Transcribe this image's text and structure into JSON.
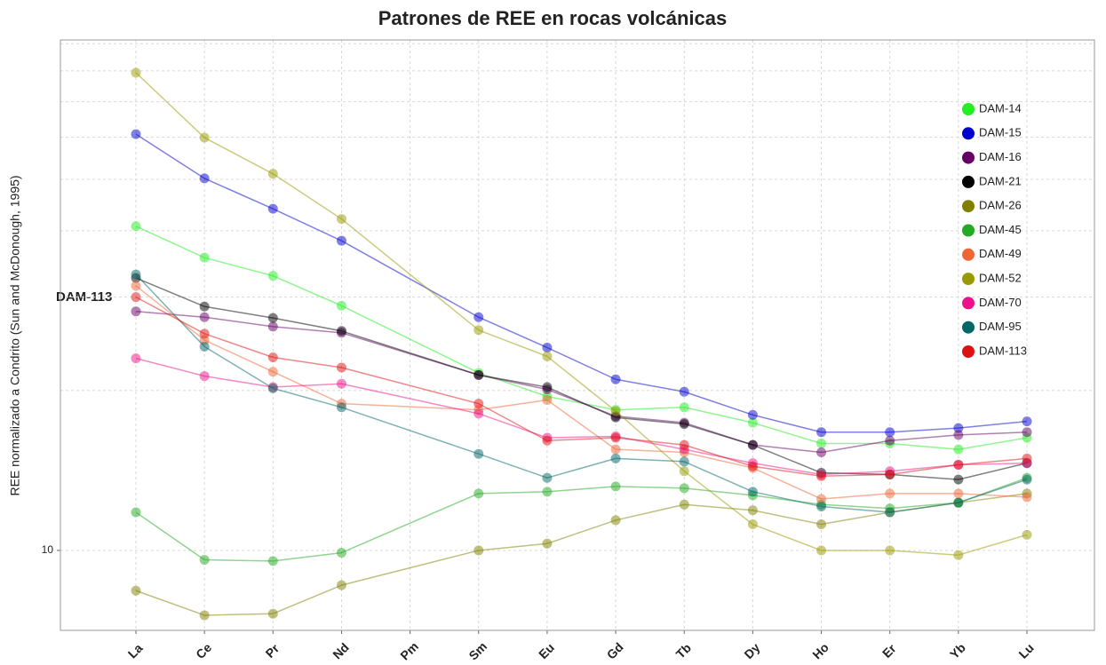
{
  "chart_data": {
    "type": "line",
    "title": "Patrones de REE en rocas volcánicas",
    "y_label": "REE normalizado a Condrito (Sun and McDonough, 1995)",
    "annotation": "DAM-113",
    "categories": [
      "La",
      "Ce",
      "Pr",
      "Nd",
      "Pm",
      "Sm",
      "Eu",
      "Gd",
      "Tb",
      "Dy",
      "Ho",
      "Er",
      "Yb",
      "Lu"
    ],
    "ylim": [
      7.07,
      91.5
    ],
    "yticks": [
      10
    ],
    "ylog": true,
    "grid": true,
    "legend": "right",
    "series": [
      {
        "name": "DAM-14",
        "color": "#22ee22",
        "values": [
          40.8,
          35.6,
          32.9,
          28.9,
          null,
          21.6,
          19.5,
          18.4,
          18.6,
          17.4,
          15.9,
          15.9,
          15.5,
          16.3
        ]
      },
      {
        "name": "DAM-15",
        "color": "#0000cc",
        "values": [
          60.8,
          50.2,
          44.0,
          38.3,
          null,
          27.5,
          24.1,
          21.0,
          19.9,
          18.0,
          16.7,
          16.7,
          17.0,
          17.5
        ]
      },
      {
        "name": "DAM-16",
        "color": "#660066",
        "values": [
          28.2,
          27.5,
          26.4,
          25.7,
          null,
          21.4,
          20.1,
          17.9,
          17.4,
          15.8,
          15.3,
          16.1,
          16.5,
          16.7
        ]
      },
      {
        "name": "DAM-21",
        "color": "#000000",
        "values": [
          32.6,
          28.8,
          27.4,
          25.9,
          null,
          21.4,
          20.3,
          17.8,
          17.3,
          15.8,
          14.0,
          13.9,
          13.6,
          14.6
        ]
      },
      {
        "name": "DAM-26",
        "color": "#808000",
        "values": [
          8.4,
          7.55,
          7.6,
          8.6,
          null,
          10.0,
          10.3,
          11.4,
          12.2,
          11.9,
          11.2,
          11.8,
          12.3,
          12.8
        ]
      },
      {
        "name": "DAM-45",
        "color": "#22aa22",
        "values": [
          11.8,
          9.6,
          9.55,
          9.9,
          null,
          12.8,
          12.9,
          13.2,
          13.1,
          12.7,
          12.2,
          12.0,
          12.3,
          13.7
        ]
      },
      {
        "name": "DAM-49",
        "color": "#ee6633",
        "values": [
          31.5,
          24.9,
          21.7,
          18.9,
          null,
          18.4,
          19.2,
          15.5,
          15.3,
          14.3,
          12.5,
          12.8,
          12.8,
          12.6
        ]
      },
      {
        "name": "DAM-52",
        "color": "#999900",
        "values": [
          79.4,
          59.9,
          51.2,
          42.1,
          null,
          26.0,
          23.2,
          18.3,
          14.1,
          11.2,
          10.0,
          10.0,
          9.8,
          10.7
        ]
      },
      {
        "name": "DAM-70",
        "color": "#ee1188",
        "values": [
          23.0,
          21.3,
          20.3,
          20.6,
          null,
          18.1,
          16.3,
          16.4,
          15.5,
          14.6,
          13.9,
          14.1,
          14.5,
          14.6
        ]
      },
      {
        "name": "DAM-95",
        "color": "#006666",
        "values": [
          33.1,
          24.2,
          20.2,
          18.6,
          null,
          15.2,
          13.7,
          14.9,
          14.7,
          12.9,
          12.1,
          11.8,
          12.3,
          13.6
        ]
      },
      {
        "name": "DAM-113",
        "color": "#dd1111",
        "values": [
          30.0,
          25.6,
          23.1,
          22.1,
          null,
          18.9,
          16.1,
          16.3,
          15.8,
          14.4,
          13.8,
          13.9,
          14.5,
          14.9
        ]
      }
    ]
  }
}
